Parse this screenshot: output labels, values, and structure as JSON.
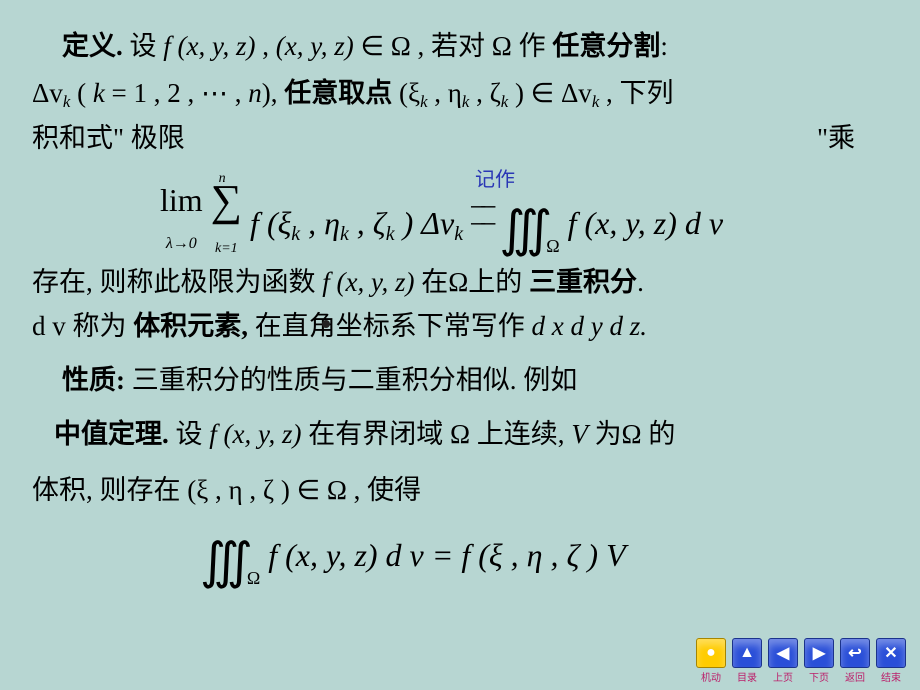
{
  "colors": {
    "bg": "#b7d6d2",
    "text": "#000000",
    "annot": "#2a37b5",
    "nav_yellow": "#ffcc00",
    "nav_blue": "#2a4fd8",
    "nav_label": "#bb1f6a"
  },
  "fontsize": {
    "body": 27,
    "nav_label": 10
  },
  "line1": {
    "def": "定义. ",
    "a": "设 ",
    "f": "f (x, y, z)",
    "b": " , ",
    "xyz": "(x, y, z)",
    "in": " ∈ Ω",
    "c": " , 若对 Ω 作",
    "split": "任意分割"
  },
  "line2a": {
    "dv": "Δv",
    "k": "k",
    "a": " ( ",
    "keq": "k",
    "eq": " = 1 , 2 , ⋯ , ",
    "nend": "n",
    "paren": "),",
    "pick": "任意取点 ",
    "pt": "(ξ",
    "k1": "k",
    "c1": " , η",
    "k2": "k",
    "c2": " , ζ",
    "k3": "k",
    "c3": " ) ∈ Δv",
    "k4": "k",
    "tail": " , 下列"
  },
  "line2b": {
    "a": "积和式\"  极限",
    "b": "\"乘"
  },
  "eq1": {
    "annot": "记作",
    "lim": "lim",
    "lam": "λ→0",
    "sum": "∑",
    "n": "n",
    "k1": "k=1",
    "f": "f (ξ",
    "ks1": "k",
    "c1": " , η",
    "ks2": "k",
    "c2": " , ζ",
    "ks3": "k",
    "c3": " ) Δv",
    "ks4": "k",
    "eqbar": "──",
    "int": "∭",
    "omega": "Ω",
    "rhs": "f (x, y, z) d v"
  },
  "line3": {
    "a": "存在, 则称此极限为函数 ",
    "f": "f (x, y, z)",
    "b": " 在Ω上的",
    "c": "三重积分"
  },
  "line4": {
    "dv": "d v",
    "a": "称为",
    "b": "体积元素, ",
    "c": "在直角坐标系下常写作  ",
    "d": "d x d y d z."
  },
  "line5": {
    "a": "性质: ",
    "b": "三重积分的性质与二重积分相似. 例如"
  },
  "line6": {
    "a": "中值定理. ",
    "b": "设 ",
    "f": "f (x, y, z)",
    "c": " 在有界闭域 Ω 上连续, ",
    "V": "V",
    "d": " 为Ω 的"
  },
  "line7": {
    "a": "体积,  则存在 ",
    "pt": "(ξ , η , ζ ) ∈ Ω",
    "b": " , 使得"
  },
  "eq2": {
    "int": "∭",
    "omega": "Ω",
    "lhs": "f (x, y, z) d v  =  f (ξ , η , ζ ) V"
  },
  "nav": [
    {
      "label": "机动",
      "glyph": "●",
      "bg": "nav_yellow",
      "text": "#fff"
    },
    {
      "label": "目录",
      "glyph": "▲",
      "bg": "nav_blue",
      "text": "#fff"
    },
    {
      "label": "上页",
      "glyph": "◀",
      "bg": "nav_blue",
      "text": "#fff"
    },
    {
      "label": "下页",
      "glyph": "▶",
      "bg": "nav_blue",
      "text": "#fff"
    },
    {
      "label": "返回",
      "glyph": "↩",
      "bg": "nav_blue",
      "text": "#fff"
    },
    {
      "label": "结束",
      "glyph": "✕",
      "bg": "nav_blue",
      "text": "#fff"
    }
  ]
}
